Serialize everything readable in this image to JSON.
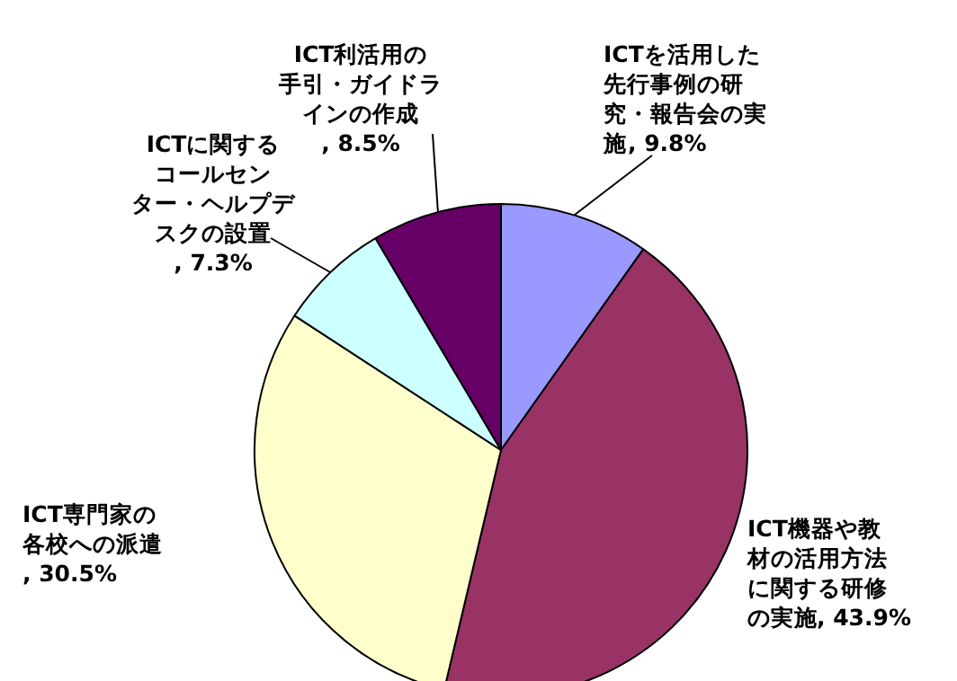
{
  "chart_data": {
    "type": "pie",
    "categories": [
      "ICTを活用した先行事例の研究・報告会の実施",
      "ICT機器や教材の活用方法に関する研修の実施",
      "ICT専門家の各校への派遣",
      "ICTに関するコールセンター・ヘルプデスクの設置",
      "ICT利活用の手引・ガイドラインの作成"
    ],
    "values": [
      9.8,
      43.9,
      30.5,
      7.3,
      8.5
    ],
    "value_labels": [
      ", 9.8%",
      ", 43.9%",
      ", 30.5%",
      ", 7.3%",
      ", 8.5%"
    ],
    "colors": [
      "#9999ff",
      "#993366",
      "#ffffcc",
      "#ccffff",
      "#660066"
    ]
  }
}
